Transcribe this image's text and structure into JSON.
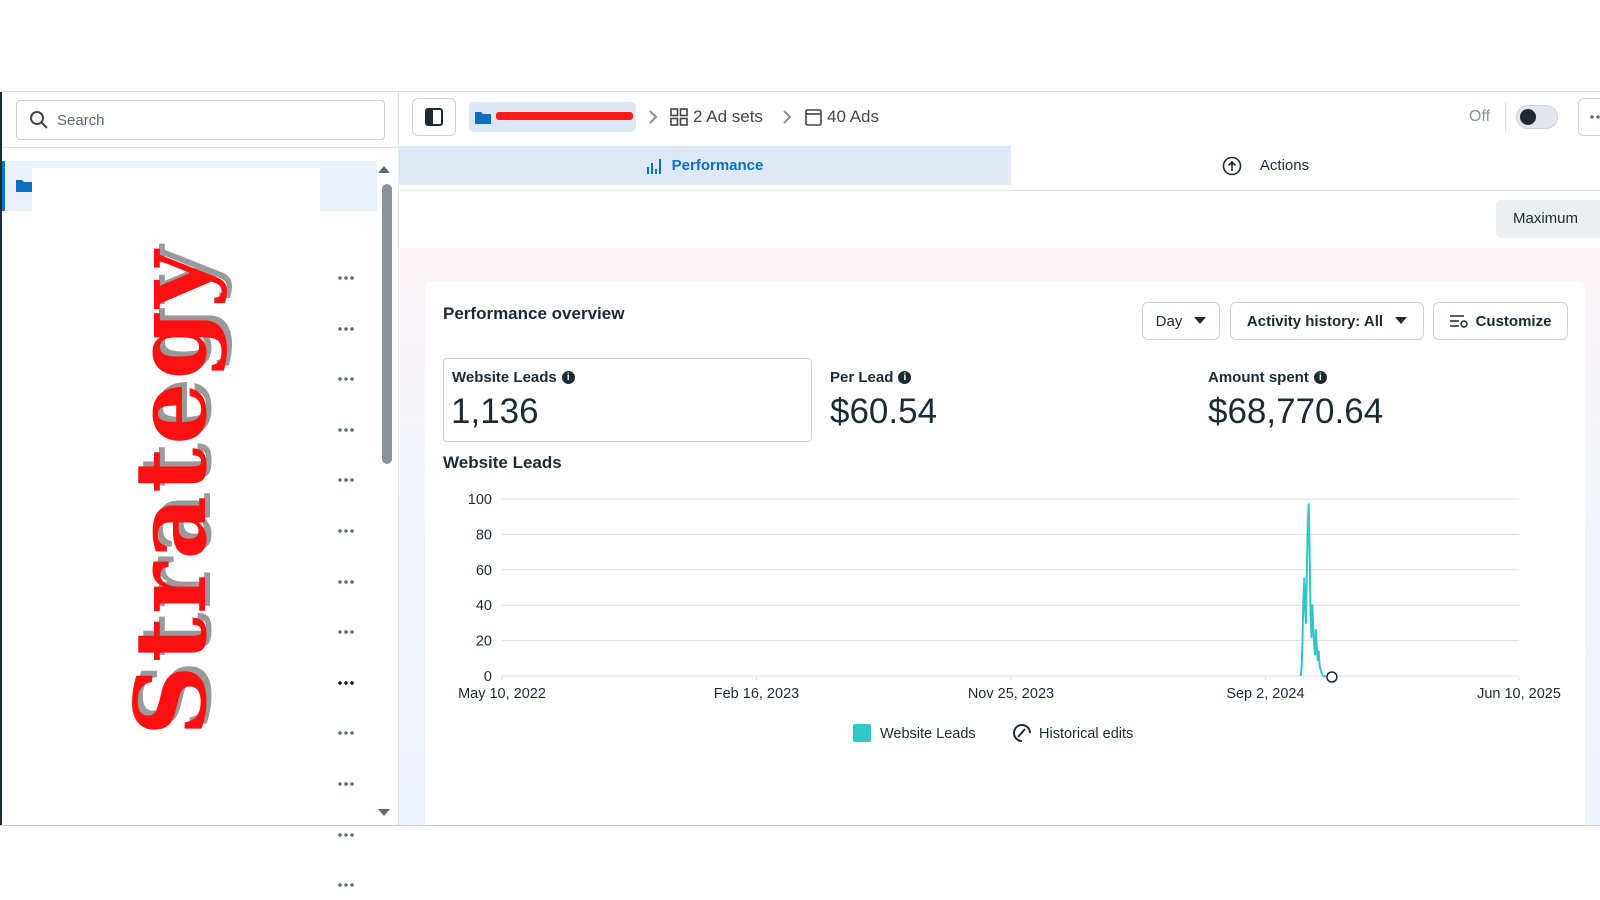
{
  "sidebar": {
    "search_placeholder": "Search",
    "overlay_text": "Strategy"
  },
  "breadcrumb": {
    "ad_sets": "2 Ad sets",
    "ads": "40 Ads"
  },
  "toolbar": {
    "status": "Off"
  },
  "tabs": [
    "Performance",
    "Actions"
  ],
  "attribution": "Maximum",
  "overview": {
    "title": "Performance overview",
    "controls": [
      "Day",
      "Activity history: All",
      "Customize"
    ],
    "metrics": [
      {
        "label": "Website Leads",
        "value": "1,136"
      },
      {
        "label": "Per Lead",
        "value": "$60.54"
      },
      {
        "label": "Amount spent",
        "value": "$68,770.64"
      }
    ]
  },
  "chart_data": {
    "type": "line",
    "title": "Website Leads",
    "x": [
      "2024-10-11",
      "2024-10-12",
      "2024-10-13",
      "2024-10-14",
      "2024-10-15",
      "2024-10-16",
      "2024-10-17",
      "2024-10-18",
      "2024-10-19",
      "2024-10-20",
      "2024-10-21",
      "2024-10-22",
      "2024-10-23",
      "2024-10-24",
      "2024-10-25",
      "2024-10-26",
      "2024-10-27",
      "2024-10-28",
      "2024-10-29",
      "2024-10-30",
      "2024-10-31",
      "2024-11-01",
      "2024-11-02",
      "2024-11-03",
      "2024-11-04",
      "2024-11-05",
      "2024-11-06",
      "2024-11-07",
      "2024-11-08"
    ],
    "series": [
      {
        "name": "Website Leads",
        "color": "#33c6c8",
        "values": [
          0,
          4,
          18,
          42,
          55,
          38,
          30,
          62,
          88,
          97,
          70,
          35,
          22,
          40,
          28,
          18,
          12,
          26,
          16,
          9,
          14,
          6,
          4,
          2,
          1,
          0,
          0,
          0,
          0
        ]
      }
    ],
    "extra_legend": "Historical edits",
    "xlim": [
      "2022-05-10",
      "2025-06-10"
    ],
    "xticks": [
      {
        "value": "2022-05-10",
        "label": "May 10, 2022"
      },
      {
        "value": "2023-02-16",
        "label": "Feb 16, 2023"
      },
      {
        "value": "2023-11-25",
        "label": "Nov 25, 2023"
      },
      {
        "value": "2024-09-02",
        "label": "Sep 2, 2024"
      },
      {
        "value": "2025-06-10",
        "label": "Jun 10, 2025"
      }
    ],
    "ylim": [
      0,
      100
    ],
    "yticks": [
      0,
      20,
      40,
      60,
      80,
      100
    ],
    "grid": true
  }
}
